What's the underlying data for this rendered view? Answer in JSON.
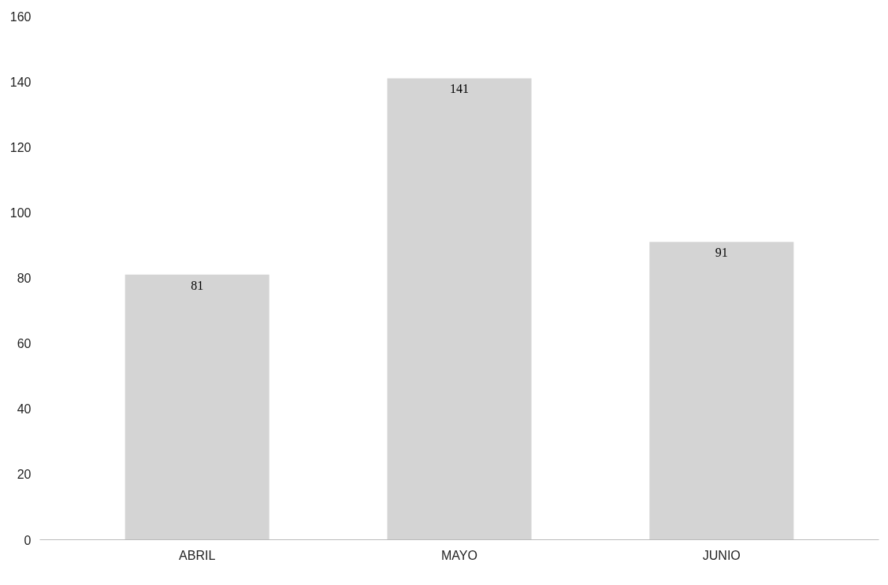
{
  "chart_data": {
    "type": "bar",
    "categories": [
      "ABRIL",
      "MAYO",
      "JUNIO"
    ],
    "values": [
      81,
      141,
      91
    ],
    "color": "#d4d4d4",
    "ylim": [
      0,
      160
    ],
    "yticks": [
      0,
      20,
      40,
      60,
      80,
      100,
      120,
      140,
      160
    ],
    "grid": false,
    "data_labels": true
  }
}
